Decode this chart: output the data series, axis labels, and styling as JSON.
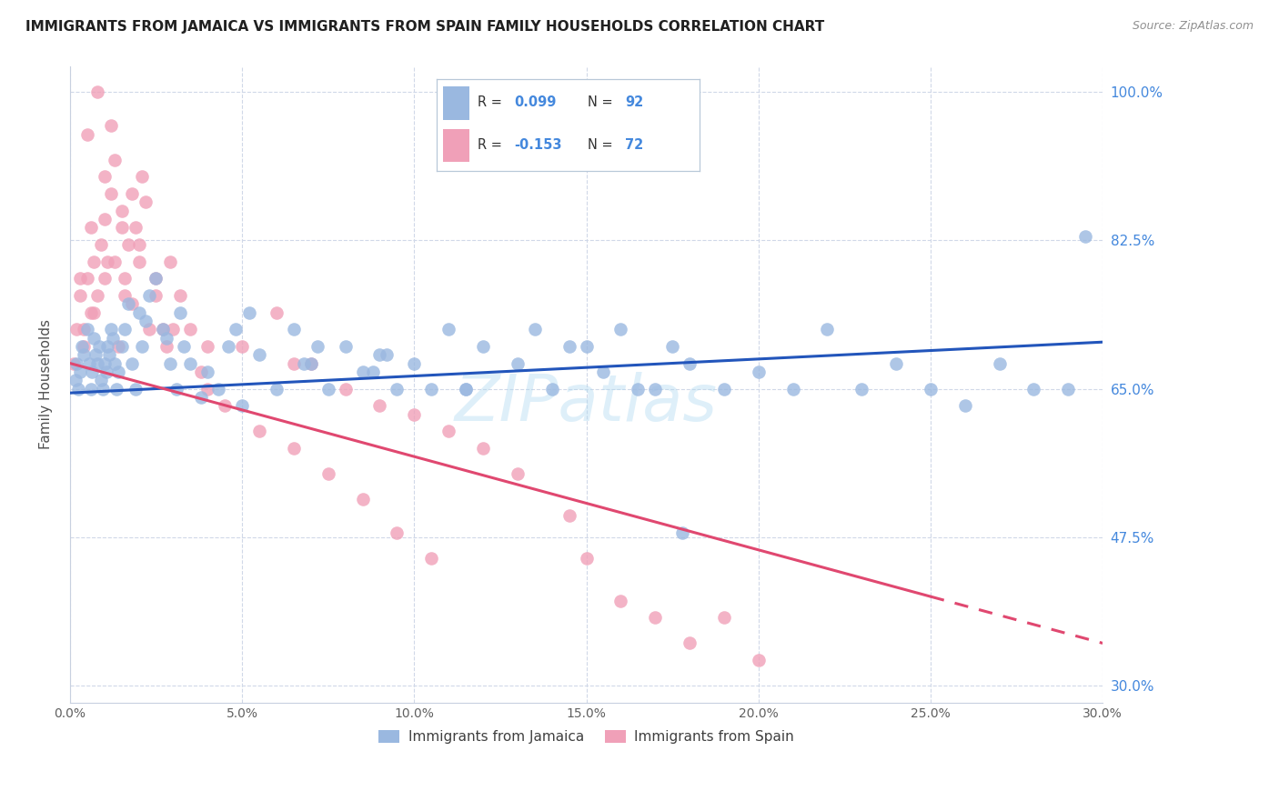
{
  "title": "IMMIGRANTS FROM JAMAICA VS IMMIGRANTS FROM SPAIN FAMILY HOUSEHOLDS CORRELATION CHART",
  "source": "Source: ZipAtlas.com",
  "ylabel": "Family Households",
  "x_tick_labels": [
    "0.0%",
    "5.0%",
    "10.0%",
    "15.0%",
    "20.0%",
    "25.0%",
    "30.0%"
  ],
  "x_tick_values": [
    0.0,
    5.0,
    10.0,
    15.0,
    20.0,
    25.0,
    30.0
  ],
  "y_tick_labels": [
    "100.0%",
    "82.5%",
    "65.0%",
    "47.5%",
    "30.0%"
  ],
  "y_tick_values": [
    100.0,
    82.5,
    65.0,
    47.5,
    30.0
  ],
  "xlim": [
    0.0,
    30.0
  ],
  "ylim": [
    28.0,
    103.0
  ],
  "legend_jamaica_label": "Immigrants from Jamaica",
  "legend_spain_label": "Immigrants from Spain",
  "color_jamaica": "#9ab8e0",
  "color_spain": "#f0a0b8",
  "color_trendline_jamaica": "#2255bb",
  "color_trendline_spain": "#e04870",
  "color_grid": "#d0d8e8",
  "color_right_labels": "#4488dd",
  "color_title": "#202020",
  "color_source": "#909090",
  "trendline_j_x0": 0.0,
  "trendline_j_y0": 64.5,
  "trendline_j_x1": 30.0,
  "trendline_j_y1": 70.5,
  "trendline_s_x0": 0.0,
  "trendline_s_y0": 68.0,
  "trendline_s_x1": 30.0,
  "trendline_s_y1": 35.0,
  "trendline_s_solid_end": 25.0,
  "watermark_text": "ZIPatlas",
  "figsize": [
    14.06,
    8.92
  ],
  "dpi": 100,
  "jamaica_x": [
    0.15,
    0.2,
    0.25,
    0.3,
    0.35,
    0.4,
    0.5,
    0.55,
    0.6,
    0.65,
    0.7,
    0.75,
    0.8,
    0.85,
    0.9,
    0.95,
    1.0,
    1.05,
    1.1,
    1.15,
    1.2,
    1.25,
    1.3,
    1.35,
    1.4,
    1.5,
    1.6,
    1.7,
    1.8,
    1.9,
    2.0,
    2.1,
    2.2,
    2.3,
    2.5,
    2.7,
    2.9,
    3.1,
    3.3,
    3.5,
    3.8,
    4.0,
    4.3,
    4.6,
    5.0,
    5.5,
    6.0,
    6.5,
    7.0,
    7.5,
    8.0,
    8.5,
    9.0,
    9.5,
    10.0,
    11.0,
    11.5,
    12.0,
    13.0,
    14.0,
    15.0,
    15.5,
    16.0,
    17.0,
    17.5,
    18.0,
    19.0,
    20.0,
    21.0,
    22.0,
    23.0,
    24.0,
    25.0,
    26.0,
    27.0,
    28.0,
    29.0,
    29.5,
    5.2,
    4.8,
    9.2,
    8.8,
    7.2,
    6.8,
    3.2,
    2.8,
    13.5,
    10.5,
    11.5,
    14.5,
    16.5,
    17.8
  ],
  "jamaica_y": [
    66,
    68,
    65,
    67,
    70,
    69,
    72,
    68,
    65,
    67,
    71,
    69,
    68,
    70,
    66,
    65,
    68,
    67,
    70,
    69,
    72,
    71,
    68,
    65,
    67,
    70,
    72,
    75,
    68,
    65,
    74,
    70,
    73,
    76,
    78,
    72,
    68,
    65,
    70,
    68,
    64,
    67,
    65,
    70,
    63,
    69,
    65,
    72,
    68,
    65,
    70,
    67,
    69,
    65,
    68,
    72,
    65,
    70,
    68,
    65,
    70,
    67,
    72,
    65,
    70,
    68,
    65,
    67,
    65,
    72,
    65,
    68,
    65,
    63,
    68,
    65,
    65,
    83,
    74,
    72,
    69,
    67,
    70,
    68,
    74,
    71,
    72,
    65,
    65,
    70,
    65,
    48
  ],
  "spain_x": [
    0.1,
    0.2,
    0.3,
    0.4,
    0.5,
    0.6,
    0.7,
    0.8,
    0.9,
    1.0,
    1.1,
    1.2,
    1.3,
    1.4,
    1.5,
    1.6,
    1.7,
    1.8,
    1.9,
    2.0,
    2.1,
    2.2,
    2.3,
    2.5,
    2.7,
    2.9,
    3.2,
    3.5,
    4.0,
    1.2,
    0.8,
    1.5,
    0.5,
    1.0,
    2.0,
    1.8,
    0.3,
    0.6,
    1.3,
    2.5,
    5.0,
    6.0,
    7.0,
    8.0,
    9.0,
    10.0,
    11.0,
    12.0,
    13.0,
    14.5,
    3.8,
    4.5,
    5.5,
    6.5,
    7.5,
    8.5,
    9.5,
    10.5,
    15.0,
    16.0,
    17.0,
    18.0,
    19.0,
    20.0,
    4.0,
    3.0,
    1.0,
    2.8,
    6.5,
    0.4,
    1.6,
    0.7
  ],
  "spain_y": [
    68,
    72,
    76,
    70,
    78,
    74,
    80,
    76,
    82,
    85,
    80,
    88,
    92,
    70,
    84,
    78,
    82,
    75,
    84,
    80,
    90,
    87,
    72,
    78,
    72,
    80,
    76,
    72,
    70,
    96,
    100,
    86,
    95,
    90,
    82,
    88,
    78,
    84,
    80,
    76,
    70,
    74,
    68,
    65,
    63,
    62,
    60,
    58,
    55,
    50,
    67,
    63,
    60,
    58,
    55,
    52,
    48,
    45,
    45,
    40,
    38,
    35,
    38,
    33,
    65,
    72,
    78,
    70,
    68,
    72,
    76,
    74
  ]
}
